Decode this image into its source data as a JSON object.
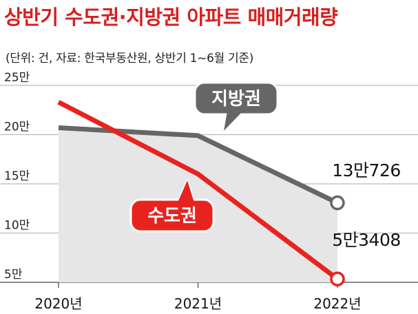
{
  "title": "상반기 수도권·지방권 아파트 매매거래량",
  "subtitle": "(단위: 건, 자료: 한국부동산원, 상반기 1~6월 기준)",
  "colors": {
    "capital": "#e8231f",
    "local": "#666666",
    "fill": "#e6e6e6",
    "grid": "#bbbbbb",
    "title": "#d81e1e"
  },
  "chart_data": {
    "type": "line",
    "categories": [
      "2020년",
      "2021년",
      "2022년"
    ],
    "yticks": [
      "5만",
      "10만",
      "15만",
      "20만",
      "25만"
    ],
    "ytick_values": [
      50000,
      100000,
      150000,
      200000,
      250000
    ],
    "ylim": [
      50000,
      250000
    ],
    "grid": true,
    "series": [
      {
        "name": "지방권",
        "values": [
          207000,
          199000,
          130726
        ],
        "end_label": "13만726"
      },
      {
        "name": "수도권",
        "values": [
          233000,
          160000,
          53408
        ],
        "end_label": "5만3408"
      }
    ]
  }
}
